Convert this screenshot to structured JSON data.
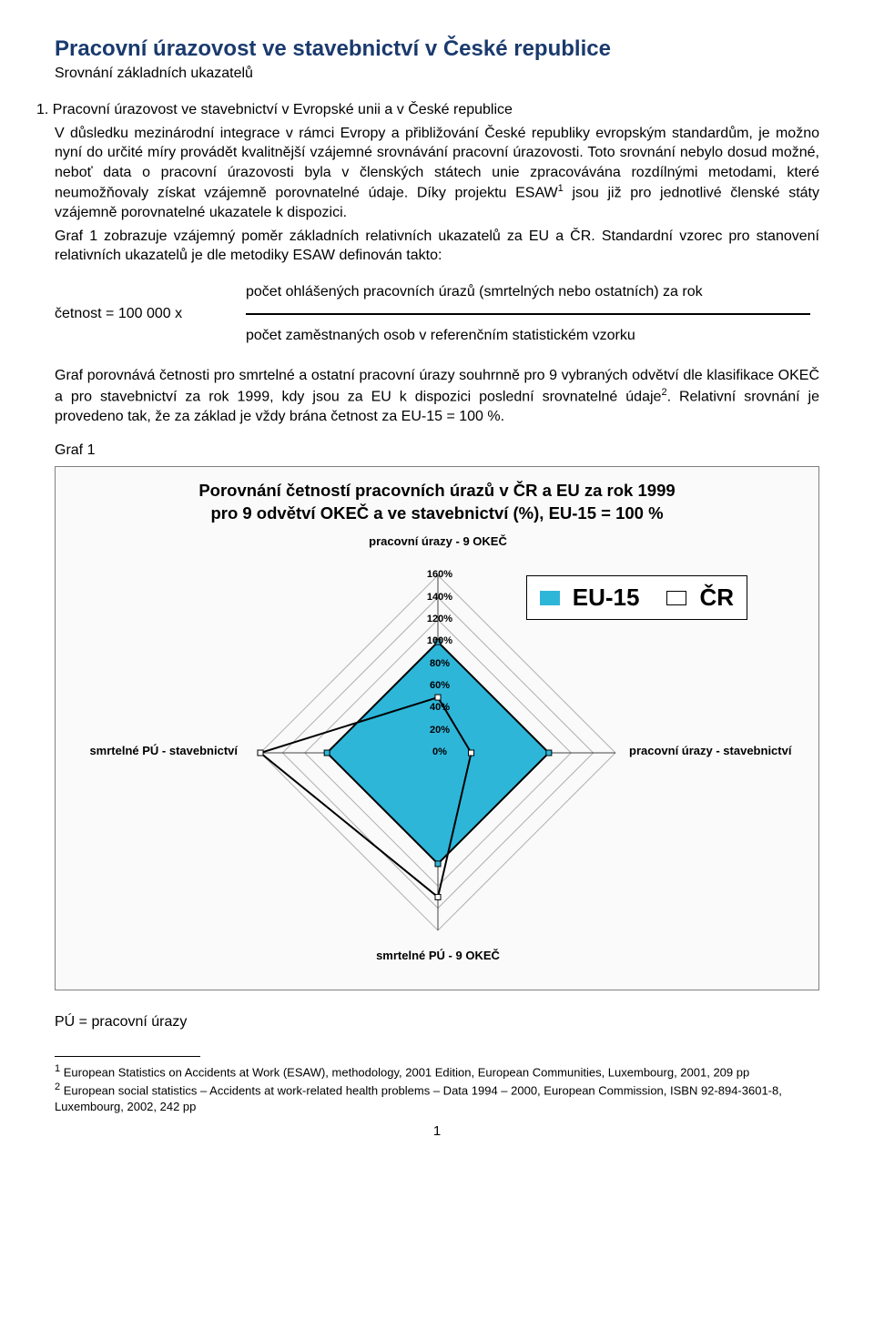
{
  "title": "Pracovní úrazovost ve stavebnictví v České republice",
  "subtitle": "Srovnání základních ukazatelů",
  "section1_head": "1. Pracovní úrazovost ve stavebnictví v Evropské unii a v České republice",
  "para1": "V důsledku mezinárodní integrace v rámci Evropy a přibližování České republiky evropským standardům, je možno nyní do určité míry provádět kvalitnější vzájemné srovnávání pracovní úrazovosti. Toto srovnání nebylo dosud možné, neboť data o pracovní úrazovosti byla v členských státech unie zpracovávána rozdílnými metodami, které neumožňovaly získat vzájemně porovnatelné údaje. Díky projektu ESAW",
  "para1b": " jsou již pro jednotlivé členské státy vzájemně porovnatelné ukazatele k dispozici.",
  "para2": "Graf 1 zobrazuje vzájemný poměr základních relativních ukazatelů za EU a ČR. Standardní vzorec pro stanovení relativních ukazatelů je dle metodiky ESAW definován takto:",
  "formula_lhs": "četnost = 100 000 x",
  "formula_num": "počet ohlášených pracovních úrazů (smrtelných nebo ostatních) za rok",
  "formula_den": "počet zaměstnaných osob v referenčním statistickém vzorku",
  "para3": "Graf porovnává četnosti pro smrtelné a ostatní pracovní úrazy souhrnně pro 9 vybraných odvětví dle klasifikace OKEČ a pro stavebnictví za rok 1999, kdy jsou za EU k dispozici poslední srovnatelné údaje",
  "para3b": ". Relativní srovnání je provedeno tak, že za základ je vždy brána četnost za EU-15 = 100 %.",
  "graf_label": "Graf 1",
  "chart_title1": "Porovnání četností pracovních úrazů v ČR a EU za rok 1999",
  "chart_title2": "pro 9 odvětví OKEČ a ve stavebnictví (%), EU-15 = 100 %",
  "axes": {
    "top": "pracovní úrazy - 9 OKEČ",
    "right": "pracovní úrazy - stavebnictví",
    "bottom": "smrtelné PÚ - 9 OKEČ",
    "left": "smrtelné PÚ - stavebnictví"
  },
  "legend": {
    "s1": "EU-15",
    "s2": "ČR"
  },
  "ticks": [
    "160%",
    "140%",
    "120%",
    "100%",
    "80%",
    "60%",
    "40%",
    "20%",
    "0%"
  ],
  "chart": {
    "max": 160,
    "grid_steps": 8,
    "grid_color": "#b0b0b0",
    "axis_color": "#444444",
    "series_eu": {
      "color_fill": "#2eb6d9",
      "color_stroke": "#000000",
      "values": [
        100,
        100,
        100,
        100
      ]
    },
    "series_cr": {
      "color_fill": "none",
      "color_stroke": "#000000",
      "values": [
        50,
        30,
        130,
        160
      ]
    }
  },
  "pu_def": "PÚ = pracovní úrazy",
  "footnote1": "European Statistics on Accidents at Work (ESAW), methodology, 2001 Edition, European Communities, Luxembourg, 2001, 209 pp",
  "footnote2": "European social statistics – Accidents at work-related health problems – Data 1994 – 2000, European Commission, ISBN 92-894-3601-8, Luxembourg, 2002, 242 pp",
  "page": "1"
}
